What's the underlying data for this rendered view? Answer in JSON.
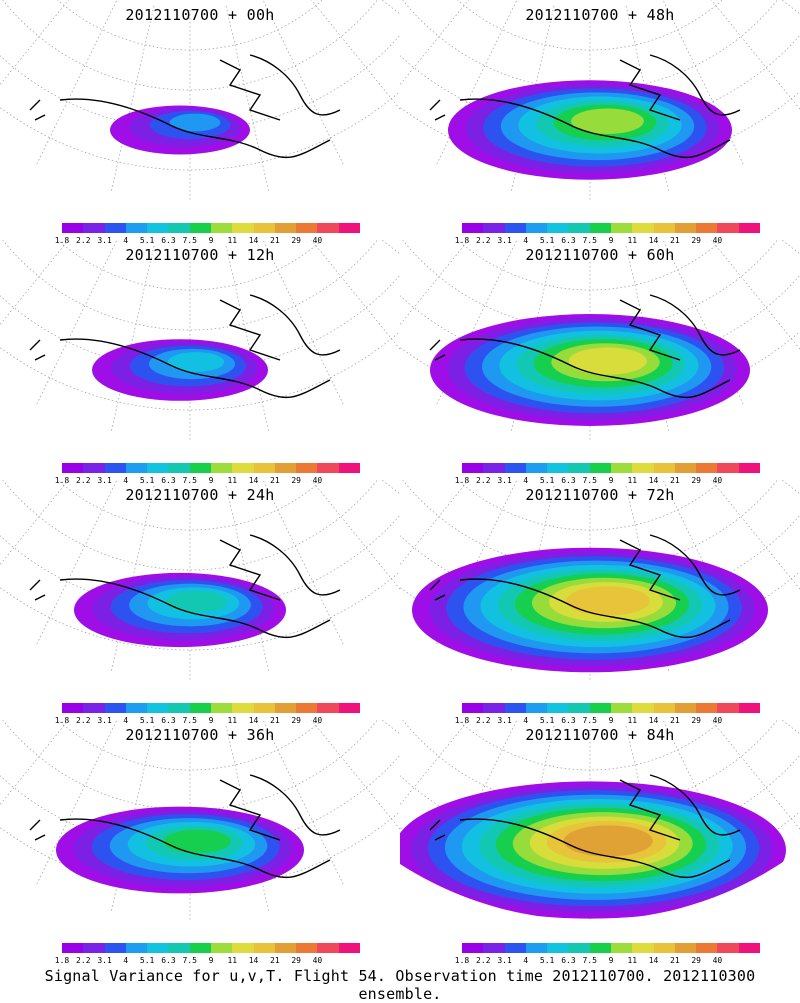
{
  "panels": [
    {
      "title": "2012110700 + 00h",
      "intensity": 0
    },
    {
      "title": "2012110700 + 48h",
      "intensity": 4
    },
    {
      "title": "2012110700 + 12h",
      "intensity": 1
    },
    {
      "title": "2012110700 + 60h",
      "intensity": 5
    },
    {
      "title": "2012110700 + 24h",
      "intensity": 2
    },
    {
      "title": "2012110700 + 72h",
      "intensity": 6
    },
    {
      "title": "2012110700 + 36h",
      "intensity": 3
    },
    {
      "title": "2012110700 + 84h",
      "intensity": 7
    }
  ],
  "colorbar": {
    "colors": [
      "#9a00e6",
      "#7a22e6",
      "#2a55f0",
      "#1e9cf0",
      "#12c3e0",
      "#14c8b0",
      "#16d04a",
      "#9ddc3a",
      "#dcdc3c",
      "#e8c23a",
      "#e0a035",
      "#ec7835",
      "#f0485a",
      "#f0127a"
    ],
    "labels": [
      "1.8",
      "2.2",
      "3.1",
      "4",
      "5.1",
      "6.3",
      "7.5",
      "9",
      "11",
      "14",
      "21",
      "29",
      "40"
    ]
  },
  "caption": "Signal Variance for u,v,T. Flight 54. Observation time 2012110700. 2012110300 ensemble."
}
